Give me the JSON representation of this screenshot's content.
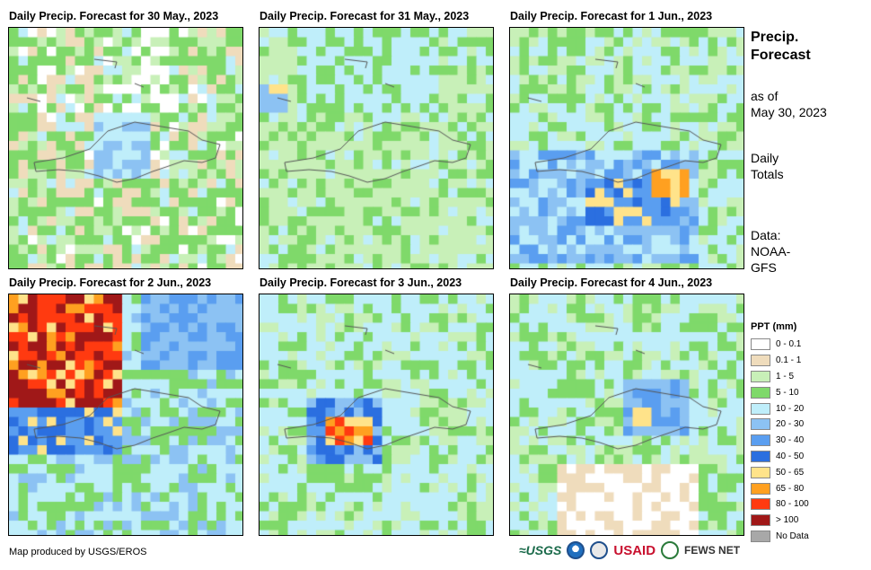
{
  "panels": [
    {
      "title": "Daily Precip. Forecast for 30 May., 2023",
      "seed": 11,
      "profile": "p1"
    },
    {
      "title": "Daily Precip. Forecast for 31 May., 2023",
      "seed": 23,
      "profile": "p2"
    },
    {
      "title": "Daily Precip. Forecast for 1 Jun., 2023",
      "seed": 37,
      "profile": "p3"
    },
    {
      "title": "Daily Precip. Forecast for 2 Jun., 2023",
      "seed": 41,
      "profile": "p4"
    },
    {
      "title": "Daily Precip. Forecast for 3 Jun., 2023",
      "seed": 53,
      "profile": "p5"
    },
    {
      "title": "Daily Precip. Forecast for 4 Jun., 2023",
      "seed": 67,
      "profile": "p6"
    }
  ],
  "side": {
    "title_line1": "Precip.",
    "title_line2": "Forecast",
    "asof_line1": "as of",
    "asof_line2": "May 30, 2023",
    "totals_line1": "Daily",
    "totals_line2": "Totals",
    "data_line1": "Data:",
    "data_line2": "NOAA-",
    "data_line3": "GFS"
  },
  "legend": {
    "title": "PPT (mm)",
    "items": [
      {
        "label": "0 - 0.1",
        "color": "#ffffff"
      },
      {
        "label": "0.1 - 1",
        "color": "#efdcbc"
      },
      {
        "label": "1 - 5",
        "color": "#c8f0b8"
      },
      {
        "label": "5 - 10",
        "color": "#7fd96a"
      },
      {
        "label": "10 - 20",
        "color": "#bfeefa"
      },
      {
        "label": "20 - 30",
        "color": "#8cc2f3"
      },
      {
        "label": "30 - 40",
        "color": "#5a9ef0"
      },
      {
        "label": "40 - 50",
        "color": "#2b6fe0"
      },
      {
        "label": "50 - 65",
        "color": "#ffe38a"
      },
      {
        "label": "65 - 80",
        "color": "#ffa020"
      },
      {
        "label": "80 - 100",
        "color": "#ff3a10"
      },
      {
        "label": "> 100",
        "color": "#a01818"
      },
      {
        "label": "No Data",
        "color": "#a8a8a8"
      }
    ]
  },
  "credit": "Map produced by USGS/EROS",
  "logos": {
    "usgs": "≈USGS",
    "usaid": "USAID",
    "fews": "FEWS NET"
  }
}
